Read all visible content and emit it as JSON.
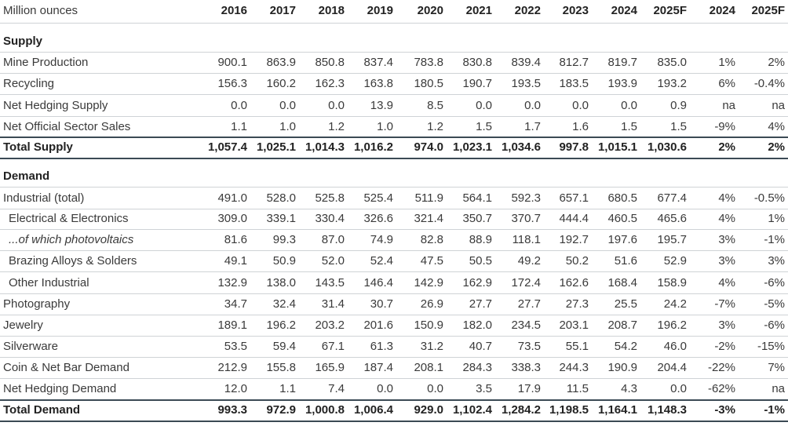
{
  "table": {
    "header": [
      "Million ounces",
      "2016",
      "2017",
      "2018",
      "2019",
      "2020",
      "2021",
      "2022",
      "2023",
      "2024",
      "2025F",
      "2024",
      "2025F"
    ],
    "sections": [
      {
        "title": "Supply",
        "rows": [
          [
            "Mine Production",
            "900.1",
            "863.9",
            "850.8",
            "837.4",
            "783.8",
            "830.8",
            "839.4",
            "812.7",
            "819.7",
            "835.0",
            "1%",
            "2%"
          ],
          [
            "Recycling",
            "156.3",
            "160.2",
            "162.3",
            "163.8",
            "180.5",
            "190.7",
            "193.5",
            "183.5",
            "193.9",
            "193.2",
            "6%",
            "-0.4%"
          ],
          [
            "Net Hedging Supply",
            "0.0",
            "0.0",
            "0.0",
            "13.9",
            "8.5",
            "0.0",
            "0.0",
            "0.0",
            "0.0",
            "0.9",
            "na",
            "na"
          ],
          [
            "Net Official Sector Sales",
            "1.1",
            "1.0",
            "1.2",
            "1.0",
            "1.2",
            "1.5",
            "1.7",
            "1.6",
            "1.5",
            "1.5",
            "-9%",
            "4%"
          ],
          [
            "Total Supply",
            "1,057.4",
            "1,025.1",
            "1,014.3",
            "1,016.2",
            "974.0",
            "1,023.1",
            "1,034.6",
            "997.8",
            "1,015.1",
            "1,030.6",
            "2%",
            "2%"
          ]
        ]
      },
      {
        "title": "Demand",
        "rows": [
          [
            "Industrial (total)",
            "491.0",
            "528.0",
            "525.8",
            "525.4",
            "511.9",
            "564.1",
            "592.3",
            "657.1",
            "680.5",
            "677.4",
            "4%",
            "-0.5%"
          ],
          [
            "Electrical & Electronics",
            "309.0",
            "339.1",
            "330.4",
            "326.6",
            "321.4",
            "350.7",
            "370.7",
            "444.4",
            "460.5",
            "465.6",
            "4%",
            "1%"
          ],
          [
            "...of which photovoltaics",
            "81.6",
            "99.3",
            "87.0",
            "74.9",
            "82.8",
            "88.9",
            "118.1",
            "192.7",
            "197.6",
            "195.7",
            "3%",
            "-1%"
          ],
          [
            "Brazing Alloys & Solders",
            "49.1",
            "50.9",
            "52.0",
            "52.4",
            "47.5",
            "50.5",
            "49.2",
            "50.2",
            "51.6",
            "52.9",
            "3%",
            "3%"
          ],
          [
            "Other Industrial",
            "132.9",
            "138.0",
            "143.5",
            "146.4",
            "142.9",
            "162.9",
            "172.4",
            "162.6",
            "168.4",
            "158.9",
            "4%",
            "-6%"
          ],
          [
            "Photography",
            "34.7",
            "32.4",
            "31.4",
            "30.7",
            "26.9",
            "27.7",
            "27.7",
            "27.3",
            "25.5",
            "24.2",
            "-7%",
            "-5%"
          ],
          [
            "Jewelry",
            "189.1",
            "196.2",
            "203.2",
            "201.6",
            "150.9",
            "182.0",
            "234.5",
            "203.1",
            "208.7",
            "196.2",
            "3%",
            "-6%"
          ],
          [
            "Silverware",
            "53.5",
            "59.4",
            "67.1",
            "61.3",
            "31.2",
            "40.7",
            "73.5",
            "55.1",
            "54.2",
            "46.0",
            "-2%",
            "-15%"
          ],
          [
            "Coin & Net Bar Demand",
            "212.9",
            "155.8",
            "165.9",
            "187.4",
            "208.1",
            "284.3",
            "338.3",
            "244.3",
            "190.9",
            "204.4",
            "-22%",
            "7%"
          ],
          [
            "Net Hedging Demand",
            "12.0",
            "1.1",
            "7.4",
            "0.0",
            "0.0",
            "3.5",
            "17.9",
            "11.5",
            "4.3",
            "0.0",
            "-62%",
            "na"
          ],
          [
            "Total Demand",
            "993.3",
            "972.9",
            "1,000.8",
            "1,006.4",
            "929.0",
            "1,102.4",
            "1,284.2",
            "1,198.5",
            "1,164.1",
            "1,148.3",
            "-3%",
            "-1%"
          ]
        ]
      }
    ]
  }
}
